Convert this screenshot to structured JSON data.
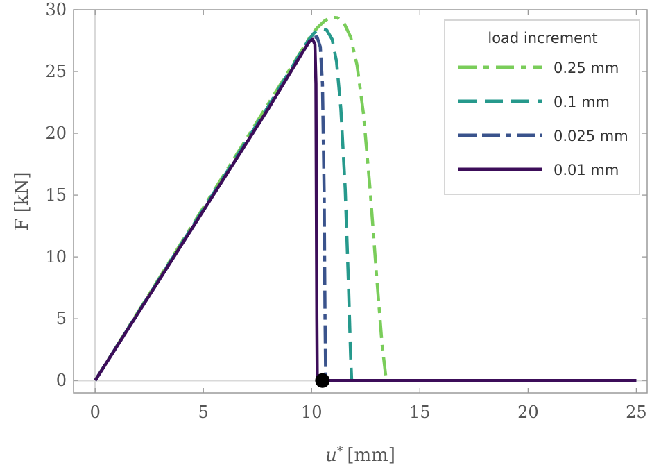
{
  "chart_data": {
    "type": "line",
    "title": "",
    "xlabel": "u* [mm]",
    "xlabel_main": "u",
    "xlabel_sup": "*",
    "xlabel_unit": "[mm]",
    "ylabel": "F [kN]",
    "xlim": [
      -1,
      25.5
    ],
    "ylim": [
      -1,
      30
    ],
    "xticks": [
      0,
      5,
      10,
      15,
      20,
      25
    ],
    "yticks": [
      0,
      5,
      10,
      15,
      20,
      25,
      30
    ],
    "legend_title": "load increment",
    "legend_position": "top-right",
    "marker": {
      "x": 10.5,
      "y": 0
    },
    "series": [
      {
        "name": "0.25 mm",
        "color": "#7acd5a",
        "dash": "long-short",
        "points": [
          [
            0,
            0
          ],
          [
            2,
            5.6
          ],
          [
            4,
            11.2
          ],
          [
            6,
            16.8
          ],
          [
            8,
            22.4
          ],
          [
            10,
            28.0
          ],
          [
            10.3,
            28.6
          ],
          [
            10.6,
            29.1
          ],
          [
            10.9,
            29.4
          ],
          [
            11.2,
            29.35
          ],
          [
            11.5,
            28.9
          ],
          [
            11.8,
            27.8
          ],
          [
            12.1,
            25.5
          ],
          [
            12.4,
            21.5
          ],
          [
            12.7,
            15.5
          ],
          [
            13.0,
            8.5
          ],
          [
            13.25,
            3.0
          ],
          [
            13.45,
            0
          ],
          [
            25,
            0
          ]
        ]
      },
      {
        "name": "0.1 mm",
        "color": "#26998c",
        "dash": "long",
        "points": [
          [
            0,
            0
          ],
          [
            2,
            5.55
          ],
          [
            4,
            11.1
          ],
          [
            6,
            16.65
          ],
          [
            8,
            22.2
          ],
          [
            9.8,
            27.4
          ],
          [
            10.1,
            28.1
          ],
          [
            10.4,
            28.45
          ],
          [
            10.7,
            28.35
          ],
          [
            10.95,
            27.6
          ],
          [
            11.15,
            25.8
          ],
          [
            11.35,
            22.0
          ],
          [
            11.55,
            15.5
          ],
          [
            11.7,
            8.0
          ],
          [
            11.8,
            2.0
          ],
          [
            11.85,
            0
          ],
          [
            25,
            0
          ]
        ]
      },
      {
        "name": "0.025 mm",
        "color": "#3a538c",
        "dash": "long-long-short",
        "points": [
          [
            0,
            0
          ],
          [
            2,
            5.5
          ],
          [
            4,
            11.0
          ],
          [
            6,
            16.5
          ],
          [
            8,
            22.0
          ],
          [
            9.8,
            27.2
          ],
          [
            10.05,
            27.75
          ],
          [
            10.25,
            27.8
          ],
          [
            10.4,
            27.0
          ],
          [
            10.5,
            24.0
          ],
          [
            10.58,
            15.0
          ],
          [
            10.62,
            5.0
          ],
          [
            10.65,
            0
          ],
          [
            25,
            0
          ]
        ]
      },
      {
        "name": "0.01 mm",
        "color": "#3c0d59",
        "dash": "solid",
        "points": [
          [
            0,
            0
          ],
          [
            2,
            5.5
          ],
          [
            4,
            11.0
          ],
          [
            6,
            16.5
          ],
          [
            8,
            22.0
          ],
          [
            9.6,
            26.6
          ],
          [
            9.9,
            27.45
          ],
          [
            10.05,
            27.6
          ],
          [
            10.15,
            27.2
          ],
          [
            10.2,
            24.0
          ],
          [
            10.22,
            15.0
          ],
          [
            10.24,
            5.0
          ],
          [
            10.26,
            0
          ],
          [
            25,
            0
          ]
        ]
      }
    ]
  }
}
